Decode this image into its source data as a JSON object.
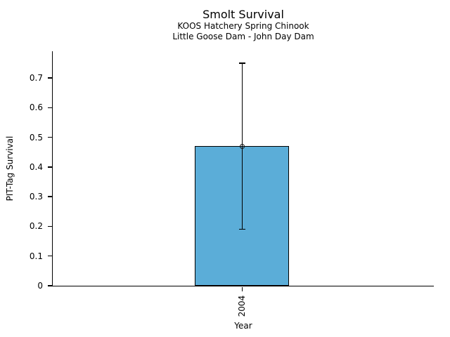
{
  "chart_data": {
    "type": "bar",
    "title": "Smolt Survival",
    "subtitles": [
      "KOOS Hatchery Spring Chinook",
      "Little Goose Dam - John Day Dam"
    ],
    "xlabel": "Year",
    "ylabel": "PIT-Tag Survival",
    "categories": [
      "2004"
    ],
    "values": [
      0.47
    ],
    "error_bars": {
      "low": [
        0.19
      ],
      "high": [
        0.75
      ]
    },
    "ylim": [
      0,
      0.79
    ],
    "yticks": [
      0,
      0.1,
      0.2,
      0.3,
      0.4,
      0.5,
      0.6,
      0.7
    ],
    "ytick_labels": [
      "0",
      "0.1",
      "0.2",
      "0.3",
      "0.4",
      "0.5",
      "0.6",
      "0.7"
    ],
    "grid": false,
    "legend": "none",
    "styles": {
      "bar_fill": "#5BADD8",
      "bar_edge": "#000000",
      "errorbar_color": "#000000",
      "marker": "open-circle",
      "background": "#ffffff"
    }
  }
}
